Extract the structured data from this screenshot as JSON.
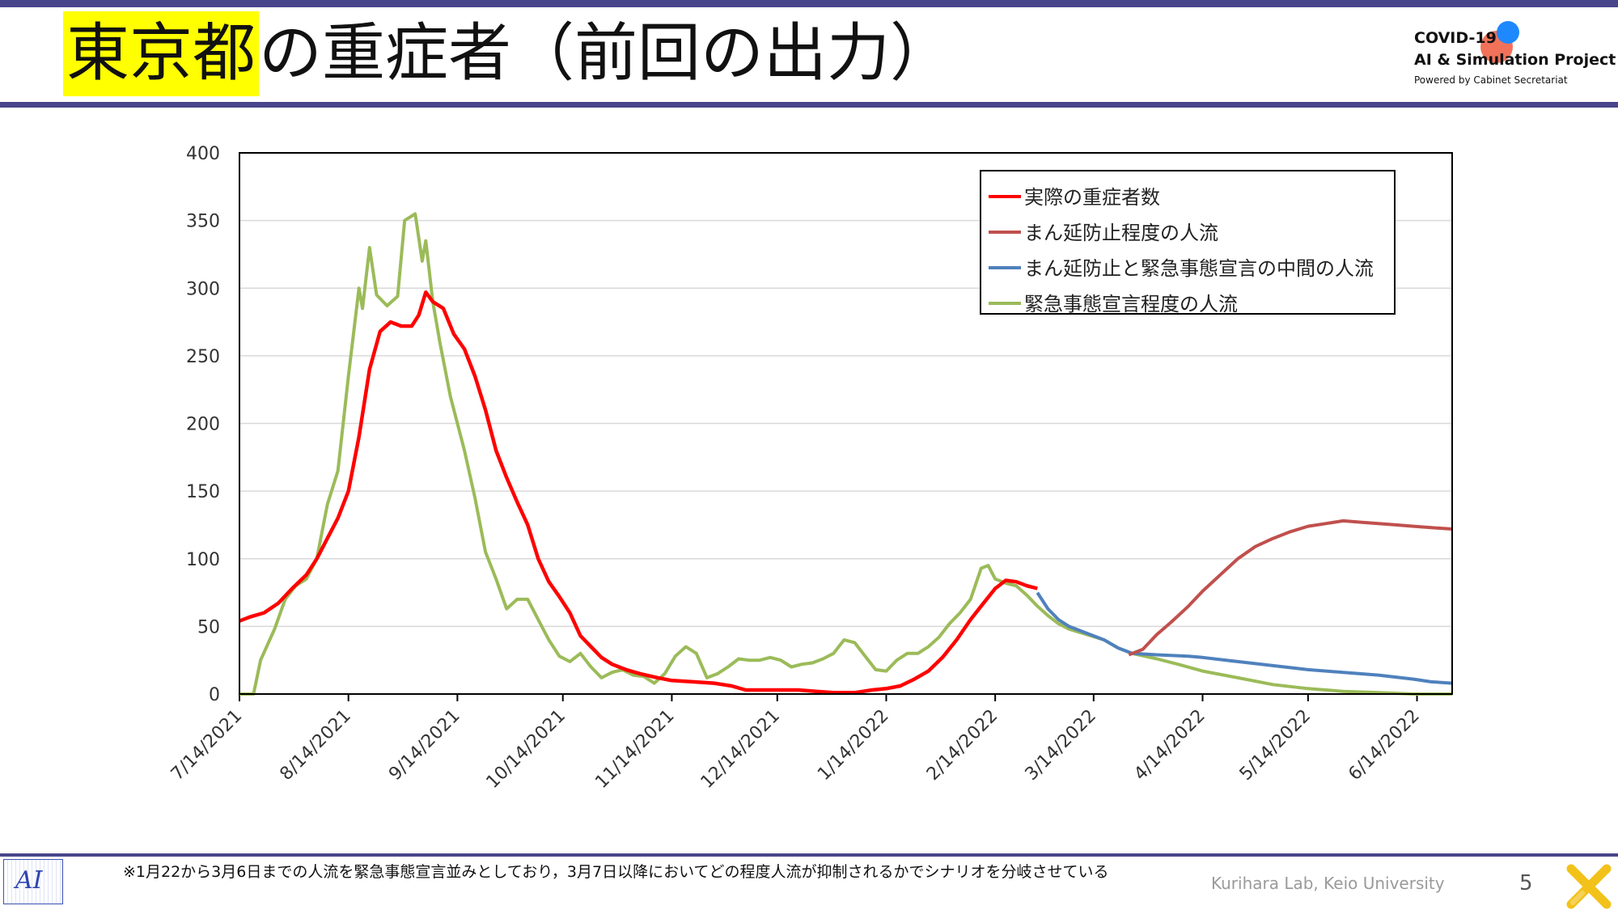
{
  "title": {
    "highlight": "東京都",
    "rest": "の重症者（前回の出力）"
  },
  "logo": {
    "line1": "COVID-19",
    "line2": "AI & Simulation Project",
    "line3": "Powered by Cabinet Secretariat"
  },
  "footer": {
    "note": "※1月22から3月6日までの人流を緊急事態宣言並みとしており，3月7日以降においてどの程度人流が抑制されるかでシナリオを分岐させている",
    "lab": "Kurihara Lab, Keio University",
    "page": "5",
    "logo_text": "AI"
  },
  "chart_data": {
    "type": "line",
    "x_ticks": [
      "7/14/2021",
      "8/14/2021",
      "9/14/2021",
      "10/14/2021",
      "11/14/2021",
      "12/14/2021",
      "1/14/2022",
      "2/14/2022",
      "3/14/2022",
      "4/14/2022",
      "5/14/2022",
      "6/14/2022"
    ],
    "y_ticks": [
      "0",
      "50",
      "100",
      "150",
      "200",
      "250",
      "300",
      "350",
      "400"
    ],
    "ylim": [
      0,
      400
    ],
    "xlim": [
      "7/14/2021",
      "6/24/2022"
    ],
    "grid": "horizontal",
    "legend_position": "top-right",
    "series": [
      {
        "name": "実際の重症者数",
        "color": "#ff0000",
        "points": [
          [
            "7/14/2021",
            54
          ],
          [
            "7/17/2021",
            57
          ],
          [
            "7/21/2021",
            60
          ],
          [
            "7/25/2021",
            67
          ],
          [
            "7/29/2021",
            78
          ],
          [
            "8/2/2021",
            88
          ],
          [
            "8/5/2021",
            100
          ],
          [
            "8/8/2021",
            115
          ],
          [
            "8/11/2021",
            130
          ],
          [
            "8/14/2021",
            150
          ],
          [
            "8/17/2021",
            190
          ],
          [
            "8/20/2021",
            240
          ],
          [
            "8/23/2021",
            268
          ],
          [
            "8/26/2021",
            275
          ],
          [
            "8/29/2021",
            272
          ],
          [
            "9/1/2021",
            272
          ],
          [
            "9/3/2021",
            280
          ],
          [
            "9/5/2021",
            297
          ],
          [
            "9/7/2021",
            290
          ],
          [
            "9/10/2021",
            285
          ],
          [
            "9/13/2021",
            266
          ],
          [
            "9/16/2021",
            255
          ],
          [
            "9/19/2021",
            235
          ],
          [
            "9/22/2021",
            210
          ],
          [
            "9/25/2021",
            180
          ],
          [
            "9/28/2021",
            160
          ],
          [
            "10/1/2021",
            142
          ],
          [
            "10/4/2021",
            125
          ],
          [
            "10/7/2021",
            100
          ],
          [
            "10/10/2021",
            83
          ],
          [
            "10/13/2021",
            72
          ],
          [
            "10/16/2021",
            60
          ],
          [
            "10/19/2021",
            43
          ],
          [
            "10/22/2021",
            35
          ],
          [
            "10/25/2021",
            27
          ],
          [
            "10/28/2021",
            22
          ],
          [
            "11/1/2021",
            18
          ],
          [
            "11/5/2021",
            15
          ],
          [
            "11/10/2021",
            12
          ],
          [
            "11/14/2021",
            10
          ],
          [
            "11/20/2021",
            9
          ],
          [
            "11/26/2021",
            8
          ],
          [
            "12/1/2021",
            6
          ],
          [
            "12/5/2021",
            3
          ],
          [
            "12/10/2021",
            3
          ],
          [
            "12/15/2021",
            3
          ],
          [
            "12/20/2021",
            3
          ],
          [
            "12/25/2021",
            2
          ],
          [
            "12/30/2021",
            1
          ],
          [
            "1/5/2022",
            1
          ],
          [
            "1/10/2022",
            3
          ],
          [
            "1/14/2022",
            4
          ],
          [
            "1/18/2022",
            6
          ],
          [
            "1/22/2022",
            11
          ],
          [
            "1/26/2022",
            17
          ],
          [
            "1/30/2022",
            27
          ],
          [
            "2/3/2022",
            40
          ],
          [
            "2/7/2022",
            55
          ],
          [
            "2/10/2022",
            65
          ],
          [
            "2/14/2022",
            78
          ],
          [
            "2/17/2022",
            84
          ],
          [
            "2/20/2022",
            83
          ],
          [
            "2/23/2022",
            80
          ],
          [
            "2/26/2022",
            78
          ]
        ]
      },
      {
        "name": "まん延防止程度の人流",
        "color": "#c0504d",
        "points": [
          [
            "3/24/2022",
            29
          ],
          [
            "3/28/2022",
            33
          ],
          [
            "4/1/2022",
            44
          ],
          [
            "4/5/2022",
            53
          ],
          [
            "4/10/2022",
            65
          ],
          [
            "4/14/2022",
            76
          ],
          [
            "4/19/2022",
            88
          ],
          [
            "4/24/2022",
            100
          ],
          [
            "4/29/2022",
            109
          ],
          [
            "5/4/2022",
            115
          ],
          [
            "5/9/2022",
            120
          ],
          [
            "5/14/2022",
            124
          ],
          [
            "5/19/2022",
            126
          ],
          [
            "5/24/2022",
            128
          ],
          [
            "5/29/2022",
            127
          ],
          [
            "6/3/2022",
            126
          ],
          [
            "6/8/2022",
            125
          ],
          [
            "6/13/2022",
            124
          ],
          [
            "6/18/2022",
            123
          ],
          [
            "6/24/2022",
            122
          ]
        ]
      },
      {
        "name": "まん延防止と緊急事態宣言の中間の人流",
        "color": "#4f81bd",
        "points": [
          [
            "2/26/2022",
            75
          ],
          [
            "3/1/2022",
            63
          ],
          [
            "3/4/2022",
            55
          ],
          [
            "3/7/2022",
            50
          ],
          [
            "3/12/2022",
            45
          ],
          [
            "3/17/2022",
            40
          ],
          [
            "3/21/2022",
            34
          ],
          [
            "3/25/2022",
            30
          ],
          [
            "4/1/2022",
            29
          ],
          [
            "4/10/2022",
            28
          ],
          [
            "4/14/2022",
            27
          ],
          [
            "4/24/2022",
            24
          ],
          [
            "5/4/2022",
            21
          ],
          [
            "5/14/2022",
            18
          ],
          [
            "5/24/2022",
            16
          ],
          [
            "6/3/2022",
            14
          ],
          [
            "6/13/2022",
            11
          ],
          [
            "6/18/2022",
            9
          ],
          [
            "6/24/2022",
            8
          ]
        ]
      },
      {
        "name": "緊急事態宣言程度の人流",
        "color": "#9bbb59",
        "points": [
          [
            "7/14/2021",
            0
          ],
          [
            "7/18/2021",
            0
          ],
          [
            "7/20/2021",
            25
          ],
          [
            "7/24/2021",
            48
          ],
          [
            "7/27/2021",
            70
          ],
          [
            "7/30/2021",
            80
          ],
          [
            "8/2/2021",
            85
          ],
          [
            "8/5/2021",
            100
          ],
          [
            "8/8/2021",
            140
          ],
          [
            "8/11/2021",
            165
          ],
          [
            "8/14/2021",
            235
          ],
          [
            "8/17/2021",
            300
          ],
          [
            "8/18/2021",
            285
          ],
          [
            "8/20/2021",
            330
          ],
          [
            "8/22/2021",
            295
          ],
          [
            "8/25/2021",
            287
          ],
          [
            "8/28/2021",
            294
          ],
          [
            "8/30/2021",
            350
          ],
          [
            "9/2/2021",
            355
          ],
          [
            "9/4/2021",
            320
          ],
          [
            "9/5/2021",
            335
          ],
          [
            "9/7/2021",
            290
          ],
          [
            "9/9/2021",
            260
          ],
          [
            "9/12/2021",
            220
          ],
          [
            "9/16/2021",
            180
          ],
          [
            "9/19/2021",
            145
          ],
          [
            "9/22/2021",
            105
          ],
          [
            "9/25/2021",
            85
          ],
          [
            "9/28/2021",
            63
          ],
          [
            "10/1/2021",
            70
          ],
          [
            "10/4/2021",
            70
          ],
          [
            "10/7/2021",
            55
          ],
          [
            "10/10/2021",
            40
          ],
          [
            "10/13/2021",
            28
          ],
          [
            "10/16/2021",
            24
          ],
          [
            "10/19/2021",
            30
          ],
          [
            "10/22/2021",
            20
          ],
          [
            "10/25/2021",
            12
          ],
          [
            "10/28/2021",
            16
          ],
          [
            "10/31/2021",
            18
          ],
          [
            "11/3/2021",
            14
          ],
          [
            "11/6/2021",
            13
          ],
          [
            "11/9/2021",
            8
          ],
          [
            "11/12/2021",
            15
          ],
          [
            "11/15/2021",
            28
          ],
          [
            "11/18/2021",
            35
          ],
          [
            "11/21/2021",
            30
          ],
          [
            "11/24/2021",
            12
          ],
          [
            "11/27/2021",
            15
          ],
          [
            "11/30/2021",
            20
          ],
          [
            "12/3/2021",
            26
          ],
          [
            "12/6/2021",
            25
          ],
          [
            "12/9/2021",
            25
          ],
          [
            "12/12/2021",
            27
          ],
          [
            "12/15/2021",
            25
          ],
          [
            "12/18/2021",
            20
          ],
          [
            "12/21/2021",
            22
          ],
          [
            "12/24/2021",
            23
          ],
          [
            "12/27/2021",
            26
          ],
          [
            "12/30/2021",
            30
          ],
          [
            "1/2/2022",
            40
          ],
          [
            "1/5/2022",
            38
          ],
          [
            "1/8/2022",
            28
          ],
          [
            "1/11/2022",
            18
          ],
          [
            "1/14/2022",
            17
          ],
          [
            "1/17/2022",
            25
          ],
          [
            "1/20/2022",
            30
          ],
          [
            "1/23/2022",
            30
          ],
          [
            "1/26/2022",
            35
          ],
          [
            "1/29/2022",
            42
          ],
          [
            "2/1/2022",
            52
          ],
          [
            "2/4/2022",
            60
          ],
          [
            "2/7/2022",
            70
          ],
          [
            "2/10/2022",
            93
          ],
          [
            "2/12/2022",
            95
          ],
          [
            "2/14/2022",
            85
          ],
          [
            "2/17/2022",
            82
          ],
          [
            "2/20/2022",
            80
          ],
          [
            "2/23/2022",
            73
          ],
          [
            "2/26/2022",
            65
          ],
          [
            "3/1/2022",
            58
          ],
          [
            "3/4/2022",
            52
          ],
          [
            "3/7/2022",
            48
          ],
          [
            "3/12/2022",
            44
          ],
          [
            "3/17/2022",
            40
          ],
          [
            "3/21/2022",
            34
          ],
          [
            "3/25/2022",
            30
          ],
          [
            "4/1/2022",
            26
          ],
          [
            "4/7/2022",
            22
          ],
          [
            "4/14/2022",
            17
          ],
          [
            "4/24/2022",
            12
          ],
          [
            "5/4/2022",
            7
          ],
          [
            "5/14/2022",
            4
          ],
          [
            "5/24/2022",
            2
          ],
          [
            "6/3/2022",
            1
          ],
          [
            "6/13/2022",
            0
          ],
          [
            "6/24/2022",
            0
          ]
        ]
      }
    ]
  }
}
